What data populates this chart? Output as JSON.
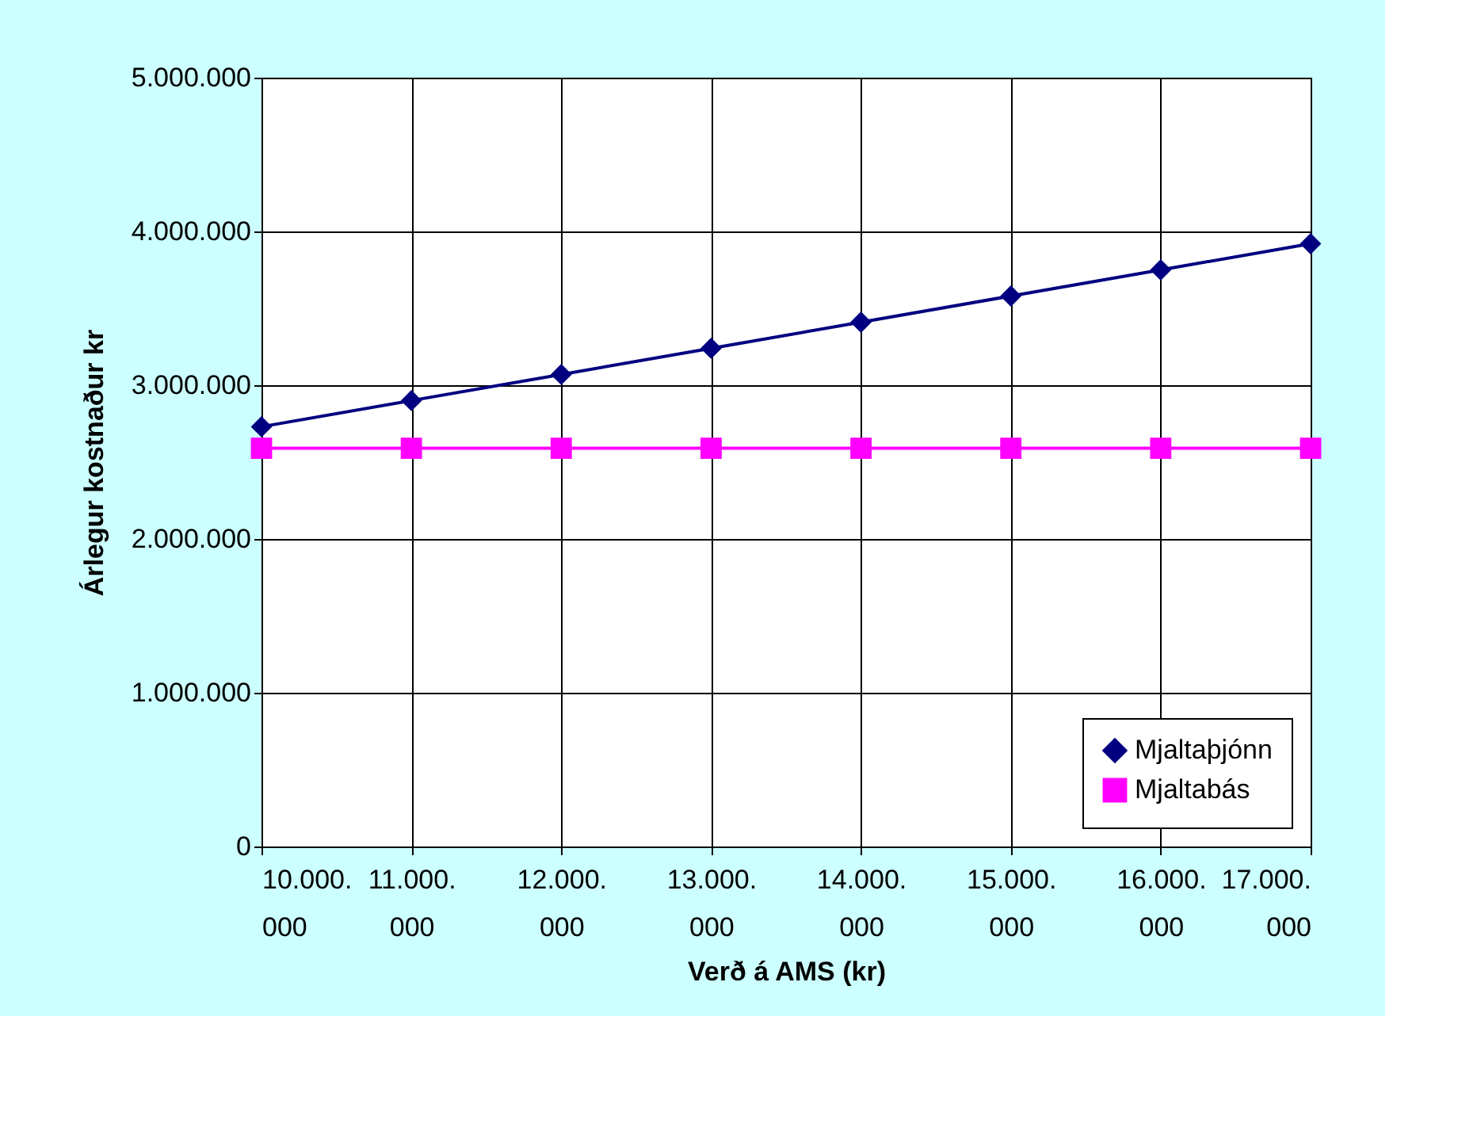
{
  "chart_data": {
    "type": "line",
    "xlabel": "Verð á AMS (kr)",
    "ylabel": "Árlegur kostnaður kr",
    "categories": [
      "10.000.000",
      "11.000.000",
      "12.000.000",
      "13.000.000",
      "14.000.000",
      "15.000.000",
      "16.000.000",
      "17.000.000"
    ],
    "series": [
      {
        "name": "Mjaltaþjónn",
        "color": "#000080",
        "marker": "diamond",
        "values": [
          2730000,
          2900000,
          3070000,
          3240000,
          3410000,
          3580000,
          3750000,
          3920000
        ]
      },
      {
        "name": "Mjaltabás",
        "color": "#ff00ff",
        "marker": "square",
        "values": [
          2590000,
          2590000,
          2590000,
          2590000,
          2590000,
          2590000,
          2590000,
          2590000
        ]
      }
    ],
    "ylim": [
      0,
      5000000
    ],
    "yticks": [
      0,
      {
        "value": 1000000,
        "label": "1.000.000"
      },
      {
        "value": 2000000,
        "label": "2.000.000"
      },
      {
        "value": 3000000,
        "label": "3.000.000"
      },
      {
        "value": 4000000,
        "label": "4.000.000"
      },
      {
        "value": 5000000,
        "label": "5.000.000"
      }
    ],
    "grid": true,
    "legend": "bottom right",
    "line_style": "solid"
  }
}
